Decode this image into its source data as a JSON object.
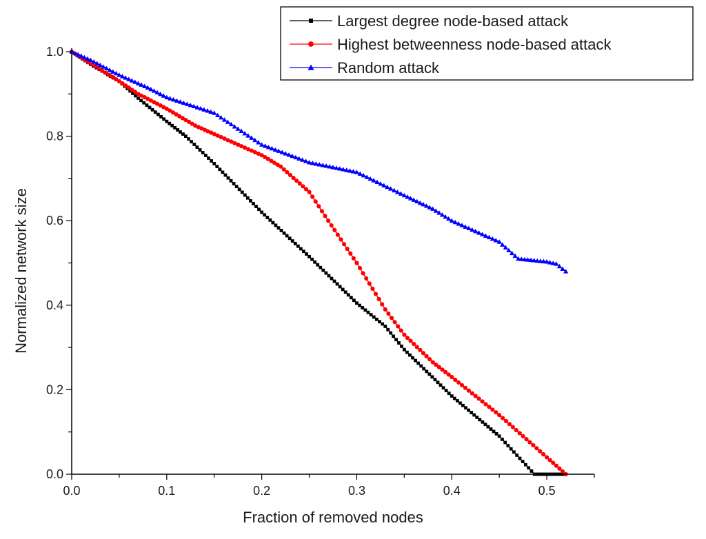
{
  "chart_data": {
    "type": "line",
    "title": "",
    "xlabel": "Fraction of removed nodes",
    "ylabel": "Normalized network size",
    "xlim": [
      0.0,
      0.55
    ],
    "ylim": [
      0.0,
      1.0
    ],
    "x_ticks": [
      "0.0",
      "0.1",
      "0.2",
      "0.3",
      "0.4",
      "0.5"
    ],
    "y_ticks": [
      "0.0",
      "0.2",
      "0.4",
      "0.6",
      "0.8",
      "1.0"
    ],
    "grid": false,
    "legend_position": "top-right",
    "series": [
      {
        "name": "Largest degree node-based attack",
        "color": "#000000",
        "marker": "square",
        "step": 0.003,
        "points": [
          [
            0.0,
            1.0
          ],
          [
            0.02,
            0.97
          ],
          [
            0.05,
            0.93
          ],
          [
            0.07,
            0.89
          ],
          [
            0.1,
            0.835
          ],
          [
            0.12,
            0.8
          ],
          [
            0.15,
            0.735
          ],
          [
            0.2,
            0.62
          ],
          [
            0.25,
            0.515
          ],
          [
            0.3,
            0.405
          ],
          [
            0.33,
            0.35
          ],
          [
            0.35,
            0.295
          ],
          [
            0.4,
            0.185
          ],
          [
            0.45,
            0.09
          ],
          [
            0.487,
            0.0
          ],
          [
            0.52,
            0.0
          ]
        ]
      },
      {
        "name": "Highest betweenness node-based attack",
        "color": "#ff0000",
        "marker": "circle",
        "step": 0.0035,
        "points": [
          [
            0.0,
            1.0
          ],
          [
            0.05,
            0.93
          ],
          [
            0.07,
            0.9
          ],
          [
            0.1,
            0.865
          ],
          [
            0.13,
            0.825
          ],
          [
            0.15,
            0.805
          ],
          [
            0.2,
            0.755
          ],
          [
            0.22,
            0.728
          ],
          [
            0.25,
            0.668
          ],
          [
            0.27,
            0.6
          ],
          [
            0.3,
            0.5
          ],
          [
            0.33,
            0.39
          ],
          [
            0.35,
            0.33
          ],
          [
            0.38,
            0.265
          ],
          [
            0.4,
            0.23
          ],
          [
            0.45,
            0.14
          ],
          [
            0.5,
            0.04
          ],
          [
            0.52,
            0.0
          ]
        ]
      },
      {
        "name": "Random attack",
        "color": "#0000ff",
        "marker": "triangle",
        "step": 0.0035,
        "points": [
          [
            0.0,
            1.0
          ],
          [
            0.02,
            0.98
          ],
          [
            0.05,
            0.945
          ],
          [
            0.08,
            0.915
          ],
          [
            0.1,
            0.892
          ],
          [
            0.15,
            0.855
          ],
          [
            0.2,
            0.78
          ],
          [
            0.25,
            0.738
          ],
          [
            0.3,
            0.715
          ],
          [
            0.35,
            0.66
          ],
          [
            0.38,
            0.628
          ],
          [
            0.4,
            0.6
          ],
          [
            0.45,
            0.55
          ],
          [
            0.47,
            0.51
          ],
          [
            0.5,
            0.503
          ],
          [
            0.51,
            0.498
          ],
          [
            0.52,
            0.48
          ]
        ]
      }
    ]
  }
}
